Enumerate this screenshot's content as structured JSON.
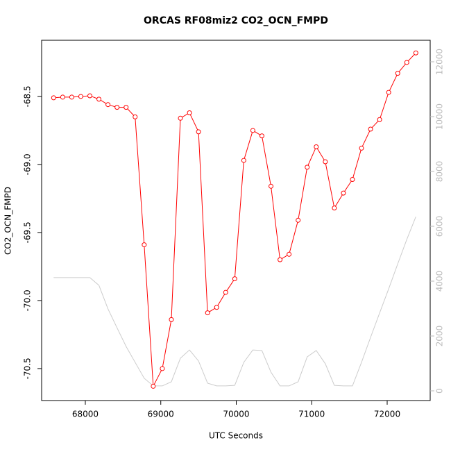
{
  "chart_data": {
    "type": "line",
    "title": "ORCAS RF08miz2 CO2_OCN_FMPD",
    "xlabel": "UTC Seconds",
    "ylabel": "CO2_OCN_FMPD",
    "x": [
      67580,
      67700,
      67820,
      67940,
      68060,
      68180,
      68300,
      68420,
      68540,
      68660,
      68780,
      68900,
      69020,
      69140,
      69260,
      69380,
      69500,
      69620,
      69740,
      69860,
      69980,
      70100,
      70220,
      70340,
      70460,
      70580,
      70700,
      70820,
      70940,
      71060,
      71180,
      71300,
      71420,
      71540,
      71660,
      71780,
      71900,
      72020,
      72140,
      72260,
      72380
    ],
    "series": [
      {
        "name": "CO2_OCN_FMPD",
        "color": "#ff0000",
        "markers": true,
        "values": [
          -68.51,
          -68.505,
          -68.505,
          -68.5,
          -68.495,
          -68.52,
          -68.56,
          -68.58,
          -68.58,
          -68.65,
          -69.59,
          -70.63,
          -70.5,
          -70.14,
          -68.66,
          -68.62,
          -68.76,
          -70.09,
          -70.05,
          -69.94,
          -69.84,
          -68.97,
          -68.75,
          -68.79,
          -69.16,
          -69.7,
          -69.66,
          -69.41,
          -69.02,
          -68.87,
          -68.98,
          -69.32,
          -69.21,
          -69.11,
          -68.88,
          -68.74,
          -68.67,
          -68.47,
          -68.33,
          -68.25,
          -68.18
        ]
      },
      {
        "color": "#cccccc",
        "markers": false,
        "axis": "y2",
        "values": [
          4130,
          4130,
          4130,
          4130,
          4130,
          3850,
          2990,
          2300,
          1620,
          1040,
          460,
          180,
          180,
          330,
          1190,
          1490,
          1090,
          280,
          180,
          180,
          200,
          1040,
          1490,
          1470,
          680,
          180,
          180,
          330,
          1240,
          1470,
          990,
          200,
          180,
          180,
          1040,
          1950,
          2840,
          3720,
          4630,
          5520,
          6350
        ]
      }
    ],
    "xlim": [
      67421,
      72570
    ],
    "xticks": [
      68000,
      69000,
      70000,
      71000,
      72000
    ],
    "ylim": [
      -70.735,
      -68.087
    ],
    "yticks": [
      {
        "value": -68.5,
        "label": "-68.5"
      },
      {
        "value": -69.0,
        "label": "-69.0"
      },
      {
        "value": -69.5,
        "label": "-69.5"
      },
      {
        "value": -70.0,
        "label": "-70.0"
      },
      {
        "value": -70.5,
        "label": "-70.5"
      }
    ],
    "y2lim": [
      -354,
      12785
    ],
    "y2ticks": [
      0,
      2000,
      4000,
      6000,
      8000,
      10000,
      12000
    ],
    "y2color": "#bbbbbb"
  }
}
